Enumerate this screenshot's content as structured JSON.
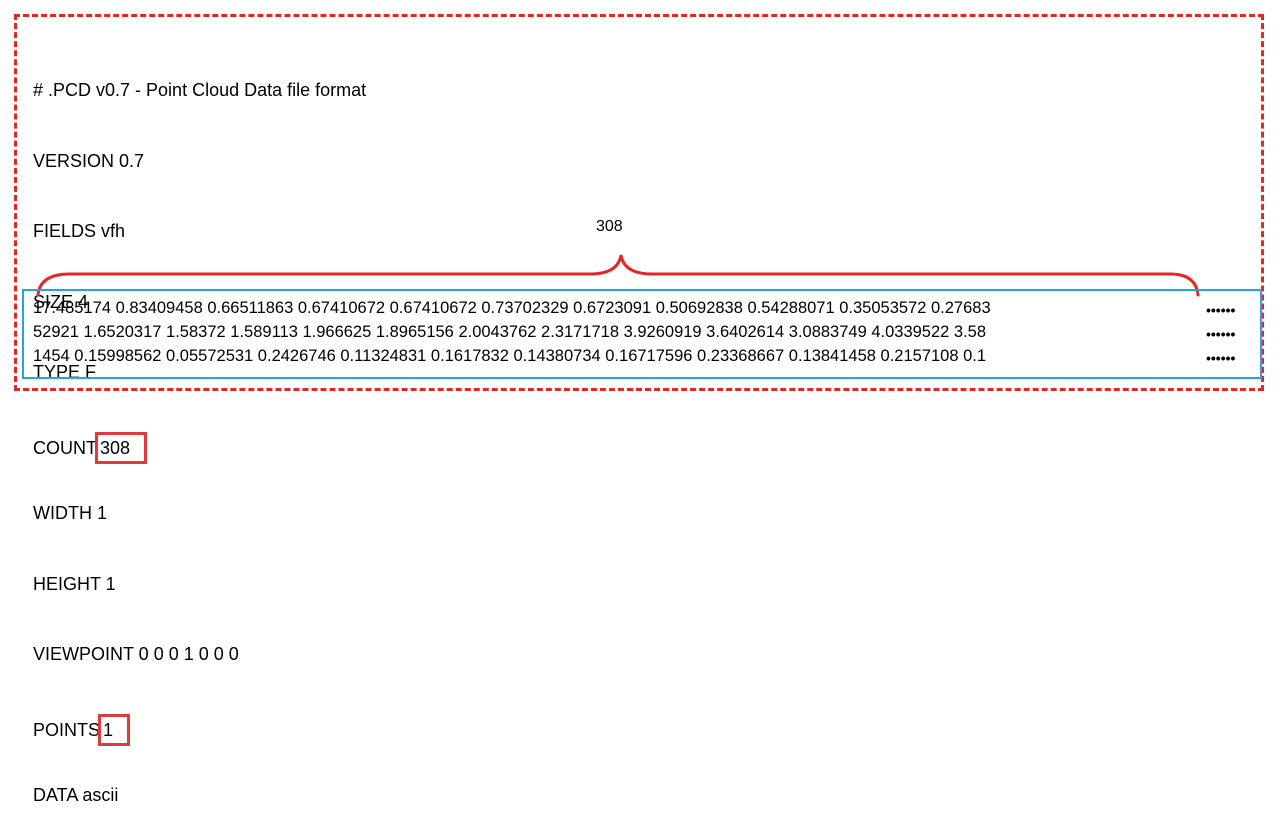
{
  "header": {
    "lines": [
      "# .PCD v0.7 - Point Cloud Data file format",
      "VERSION 0.7",
      "FIELDS vfh",
      "SIZE 4",
      "TYPE F"
    ],
    "count_label": "COUNT",
    "count_value": "308",
    "width_line": "WIDTH 1",
    "height_line": "HEIGHT 1",
    "viewpoint_line": "VIEWPOINT 0 0 0 1 0 0 0",
    "points_label": "POINTS",
    "points_value": "1",
    "data_line": "DATA ascii"
  },
  "annotation": {
    "brace_label": "308"
  },
  "data_rows": [
    "17.485174 0.83409458 0.66511863 0.67410672 0.67410672 0.73702329 0.6723091 0.50692838 0.54288071 0.35053572 0.27683",
    "52921 1.6520317 1.58372 1.589113 1.966625 1.8965156 2.0043762 2.3171718 3.9260919 3.6402614 3.0883749 4.0339522 3.58",
    "1454 0.15998562 0.05572531 0.2426746 0.11324831 0.1617832 0.14380734 0.16717596 0.23368667 0.13841458 0.2157108 0.1"
  ],
  "ellipsis": "••••••",
  "colors": {
    "outer_dashed": "#e32626",
    "highlight_box": "#e03a3a",
    "data_frame": "#2aa3dc",
    "brace": "#e32626"
  }
}
